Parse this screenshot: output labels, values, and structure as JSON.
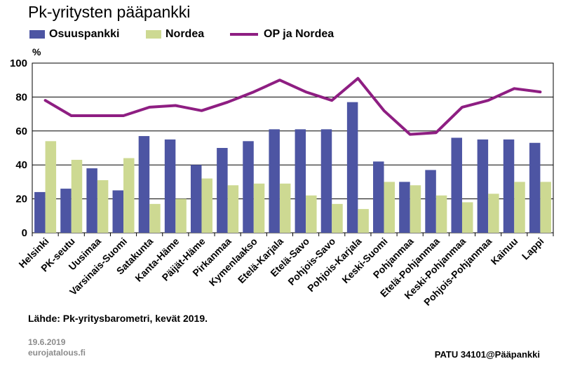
{
  "chart_data": {
    "type": "bar",
    "title": "Pk-yritysten pääpankki",
    "ylabel": "%",
    "ylim": [
      0,
      100
    ],
    "yticks": [
      0,
      20,
      40,
      60,
      80,
      100
    ],
    "grid": true,
    "legend_position": "top-left",
    "categories": [
      "Helsinki",
      "PK-seutu",
      "Uusimaa",
      "Varsinais-Suomi",
      "Satakunta",
      "Kanta-Häme",
      "Päijät-Häme",
      "Pirkanmaa",
      "Kymenlaakso",
      "Etelä-Karjala",
      "Etelä-Savo",
      "Pohjois-Savo",
      "Pohjois-Karjala",
      "Keski-Suomi",
      "Pohjanmaa",
      "Etelä-Pohjanmaa",
      "Keski-Pohjanmaa",
      "Pohjois-Pohjanmaa",
      "Kainuu",
      "Lappi"
    ],
    "series": [
      {
        "name": "Osuuspankki",
        "kind": "bar",
        "color": "#4d55a3",
        "values": [
          24,
          26,
          38,
          25,
          57,
          55,
          40,
          50,
          54,
          61,
          61,
          61,
          77,
          42,
          30,
          37,
          56,
          55,
          55,
          53
        ]
      },
      {
        "name": "Nordea",
        "kind": "bar",
        "color": "#cdd992",
        "values": [
          54,
          43,
          31,
          44,
          17,
          20,
          32,
          28,
          29,
          29,
          22,
          17,
          14,
          30,
          28,
          22,
          18,
          23,
          30,
          30
        ]
      },
      {
        "name": "OP ja Nordea",
        "kind": "line",
        "color": "#8e1e82",
        "values": [
          78,
          69,
          69,
          69,
          74,
          75,
          72,
          77,
          83,
          90,
          83,
          78,
          91,
          72,
          58,
          59,
          74,
          78,
          85,
          83
        ]
      }
    ]
  },
  "footer": {
    "source": "Lähde: Pk-yritysbarometri, kevät 2019.",
    "date": "19.6.2019",
    "site": "eurojatalous.fi",
    "code": "PATU 34101@Pääpankki"
  }
}
